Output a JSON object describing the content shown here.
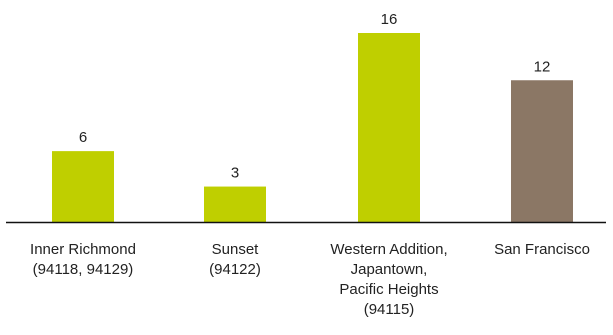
{
  "chart_data": {
    "type": "bar",
    "categories": [
      [
        "Inner Richmond",
        "(94118, 94129)"
      ],
      [
        "Sunset",
        "(94122)"
      ],
      [
        "Western Addition,",
        "Japantown,",
        "Pacific Heights",
        "(94115)"
      ],
      [
        "San Francisco"
      ]
    ],
    "values": [
      6,
      3,
      16,
      12
    ],
    "value_labels": [
      "6",
      "3",
      "16",
      "12"
    ],
    "colors": [
      "#bfcf00",
      "#bfcf00",
      "#bfcf00",
      "#8b7765"
    ],
    "ylim": [
      0,
      16
    ],
    "grid": false,
    "legend": "none",
    "title": "",
    "xlabel": "",
    "ylabel": ""
  }
}
